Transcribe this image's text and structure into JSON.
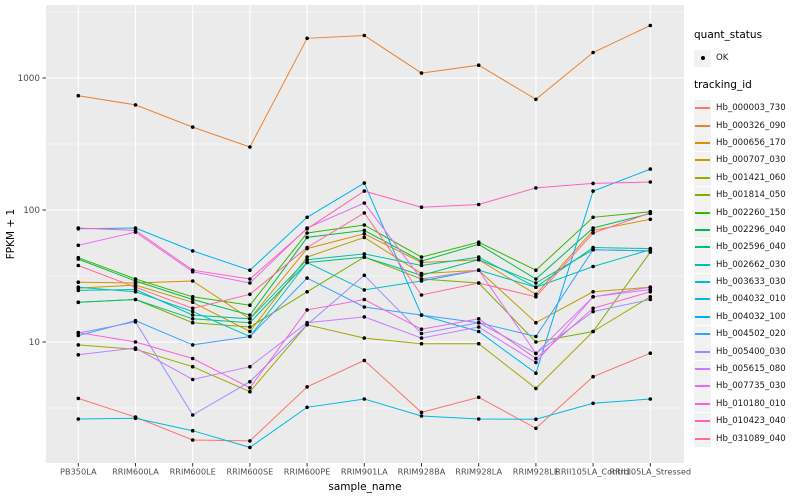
{
  "figure": {
    "legend": {
      "quant_status_title": "quant_status",
      "ok_label": "OK",
      "ok_symbol": "black-point",
      "tracking_id_title": "tracking_id"
    },
    "panel_background": "#EBEBEB",
    "gridline_color": "#FFFFFF",
    "axis_text_color": "#4D4D4D",
    "point_color": "#000000"
  },
  "chart_data": {
    "type": "line",
    "title": "",
    "xlabel": "sample_name",
    "ylabel": "FPKM + 1",
    "y_scale": "log10",
    "y_ticks": [
      1000,
      100,
      10
    ],
    "y_tick_labels": [
      "1000",
      "100",
      "10"
    ],
    "ylim": [
      1.25,
      3400
    ],
    "grid": true,
    "legend_position": "right",
    "markers": "black points at every observation (quant_status = OK)",
    "categories": [
      "PB350LA",
      "RRIM600LA",
      "RRIM600LE",
      "RRIM600SE",
      "RRIM600PE",
      "RRIM901LA",
      "RRIM928BA",
      "RRIM928LA",
      "RRIM928LE",
      "RRII105LA_Control",
      "RRII105LA_Stressed"
    ],
    "series": [
      {
        "name": "Hb_000003_730",
        "color": "#F8766D",
        "values": [
          3.74,
          2.7,
          1.81,
          1.78,
          4.57,
          7.26,
          2.93,
          3.81,
          2.22,
          5.46,
          8.22
        ]
      },
      {
        "name": "Hb_000326_090",
        "color": "#EA8331",
        "values": [
          735,
          625,
          425,
          300,
          2000,
          2100,
          1090,
          1250,
          690,
          1560,
          2500
        ]
      },
      {
        "name": "Hb_000656_170",
        "color": "#D89000",
        "values": [
          28.4,
          28,
          29,
          15,
          51,
          66,
          40,
          42,
          23,
          70,
          85
        ]
      },
      {
        "name": "Hb_000707_030",
        "color": "#C09B00",
        "values": [
          25.6,
          27,
          20,
          12,
          44,
          62,
          33,
          35,
          14,
          24,
          26
        ]
      },
      {
        "name": "Hb_001421_060",
        "color": "#A3A500",
        "values": [
          9.5,
          8.8,
          6.5,
          4.2,
          13.5,
          10.7,
          9.7,
          9.7,
          4.45,
          12,
          22
        ]
      },
      {
        "name": "Hb_001814_050",
        "color": "#7CAE00",
        "values": [
          20,
          21,
          14,
          13,
          24,
          44,
          30,
          28,
          10,
          12,
          48
        ]
      },
      {
        "name": "Hb_002260_150",
        "color": "#39B600",
        "values": [
          43.5,
          30,
          22,
          19,
          67,
          77,
          44,
          57,
          35,
          88,
          97
        ]
      },
      {
        "name": "Hb_002296_040",
        "color": "#00BB4E",
        "values": [
          42.5,
          29,
          21,
          16,
          62,
          70,
          41,
          55,
          30,
          73,
          94
        ]
      },
      {
        "name": "Hb_002596_040",
        "color": "#00BF7D",
        "values": [
          20,
          21,
          15,
          14,
          40,
          44,
          32,
          42,
          28,
          50,
          49
        ]
      },
      {
        "name": "Hb_002662_030",
        "color": "#00C1A3",
        "values": [
          24.6,
          25,
          16,
          15,
          42,
          46.5,
          38,
          44,
          26,
          52,
          51
        ]
      },
      {
        "name": "Hb_003633_030",
        "color": "#00BFC4",
        "values": [
          26,
          24,
          17,
          11,
          40,
          24.8,
          29,
          35,
          26,
          37.3,
          50
        ]
      },
      {
        "name": "Hb_004032_010",
        "color": "#00BAE0",
        "values": [
          2.61,
          2.64,
          2.13,
          1.59,
          3.2,
          3.7,
          2.75,
          2.61,
          2.6,
          3.43,
          3.7
        ]
      },
      {
        "name": "Hb_004032_100",
        "color": "#00B0F6",
        "values": [
          72,
          73,
          49,
          35,
          88,
          160,
          16,
          12,
          5.8,
          139,
          204
        ]
      },
      {
        "name": "Hb_004502_020",
        "color": "#35A2FF",
        "values": [
          11.2,
          14.5,
          9.5,
          11,
          30.5,
          18.4,
          16,
          14,
          11,
          50,
          49
        ]
      },
      {
        "name": "Hb_005400_030",
        "color": "#9590FF",
        "values": [
          11.7,
          14.2,
          2.8,
          5.0,
          13.5,
          32,
          11.6,
          14,
          8.2,
          17,
          21
        ]
      },
      {
        "name": "Hb_005615_080",
        "color": "#C77CFF",
        "values": [
          8.0,
          9.0,
          5.2,
          6.5,
          14,
          15.5,
          10.7,
          13,
          7.0,
          22,
          25
        ]
      },
      {
        "name": "Hb_007735_030",
        "color": "#E76BF3",
        "values": [
          54,
          68,
          34,
          28,
          73,
          113,
          30,
          35,
          8.2,
          22,
          26
        ]
      },
      {
        "name": "Hb_010180_010",
        "color": "#FA62DB",
        "values": [
          11.8,
          10,
          7.5,
          4.5,
          17.5,
          21,
          12.5,
          15,
          7.5,
          18,
          24
        ]
      },
      {
        "name": "Hb_010423_040",
        "color": "#FF62BC",
        "values": [
          73,
          70,
          35,
          30,
          72,
          139,
          105,
          110,
          147,
          159,
          163
        ]
      },
      {
        "name": "Hb_031089_040",
        "color": "#FF6A98",
        "values": [
          38,
          26,
          18,
          23,
          52,
          95,
          22.7,
          28,
          22,
          67,
          95
        ]
      }
    ]
  }
}
